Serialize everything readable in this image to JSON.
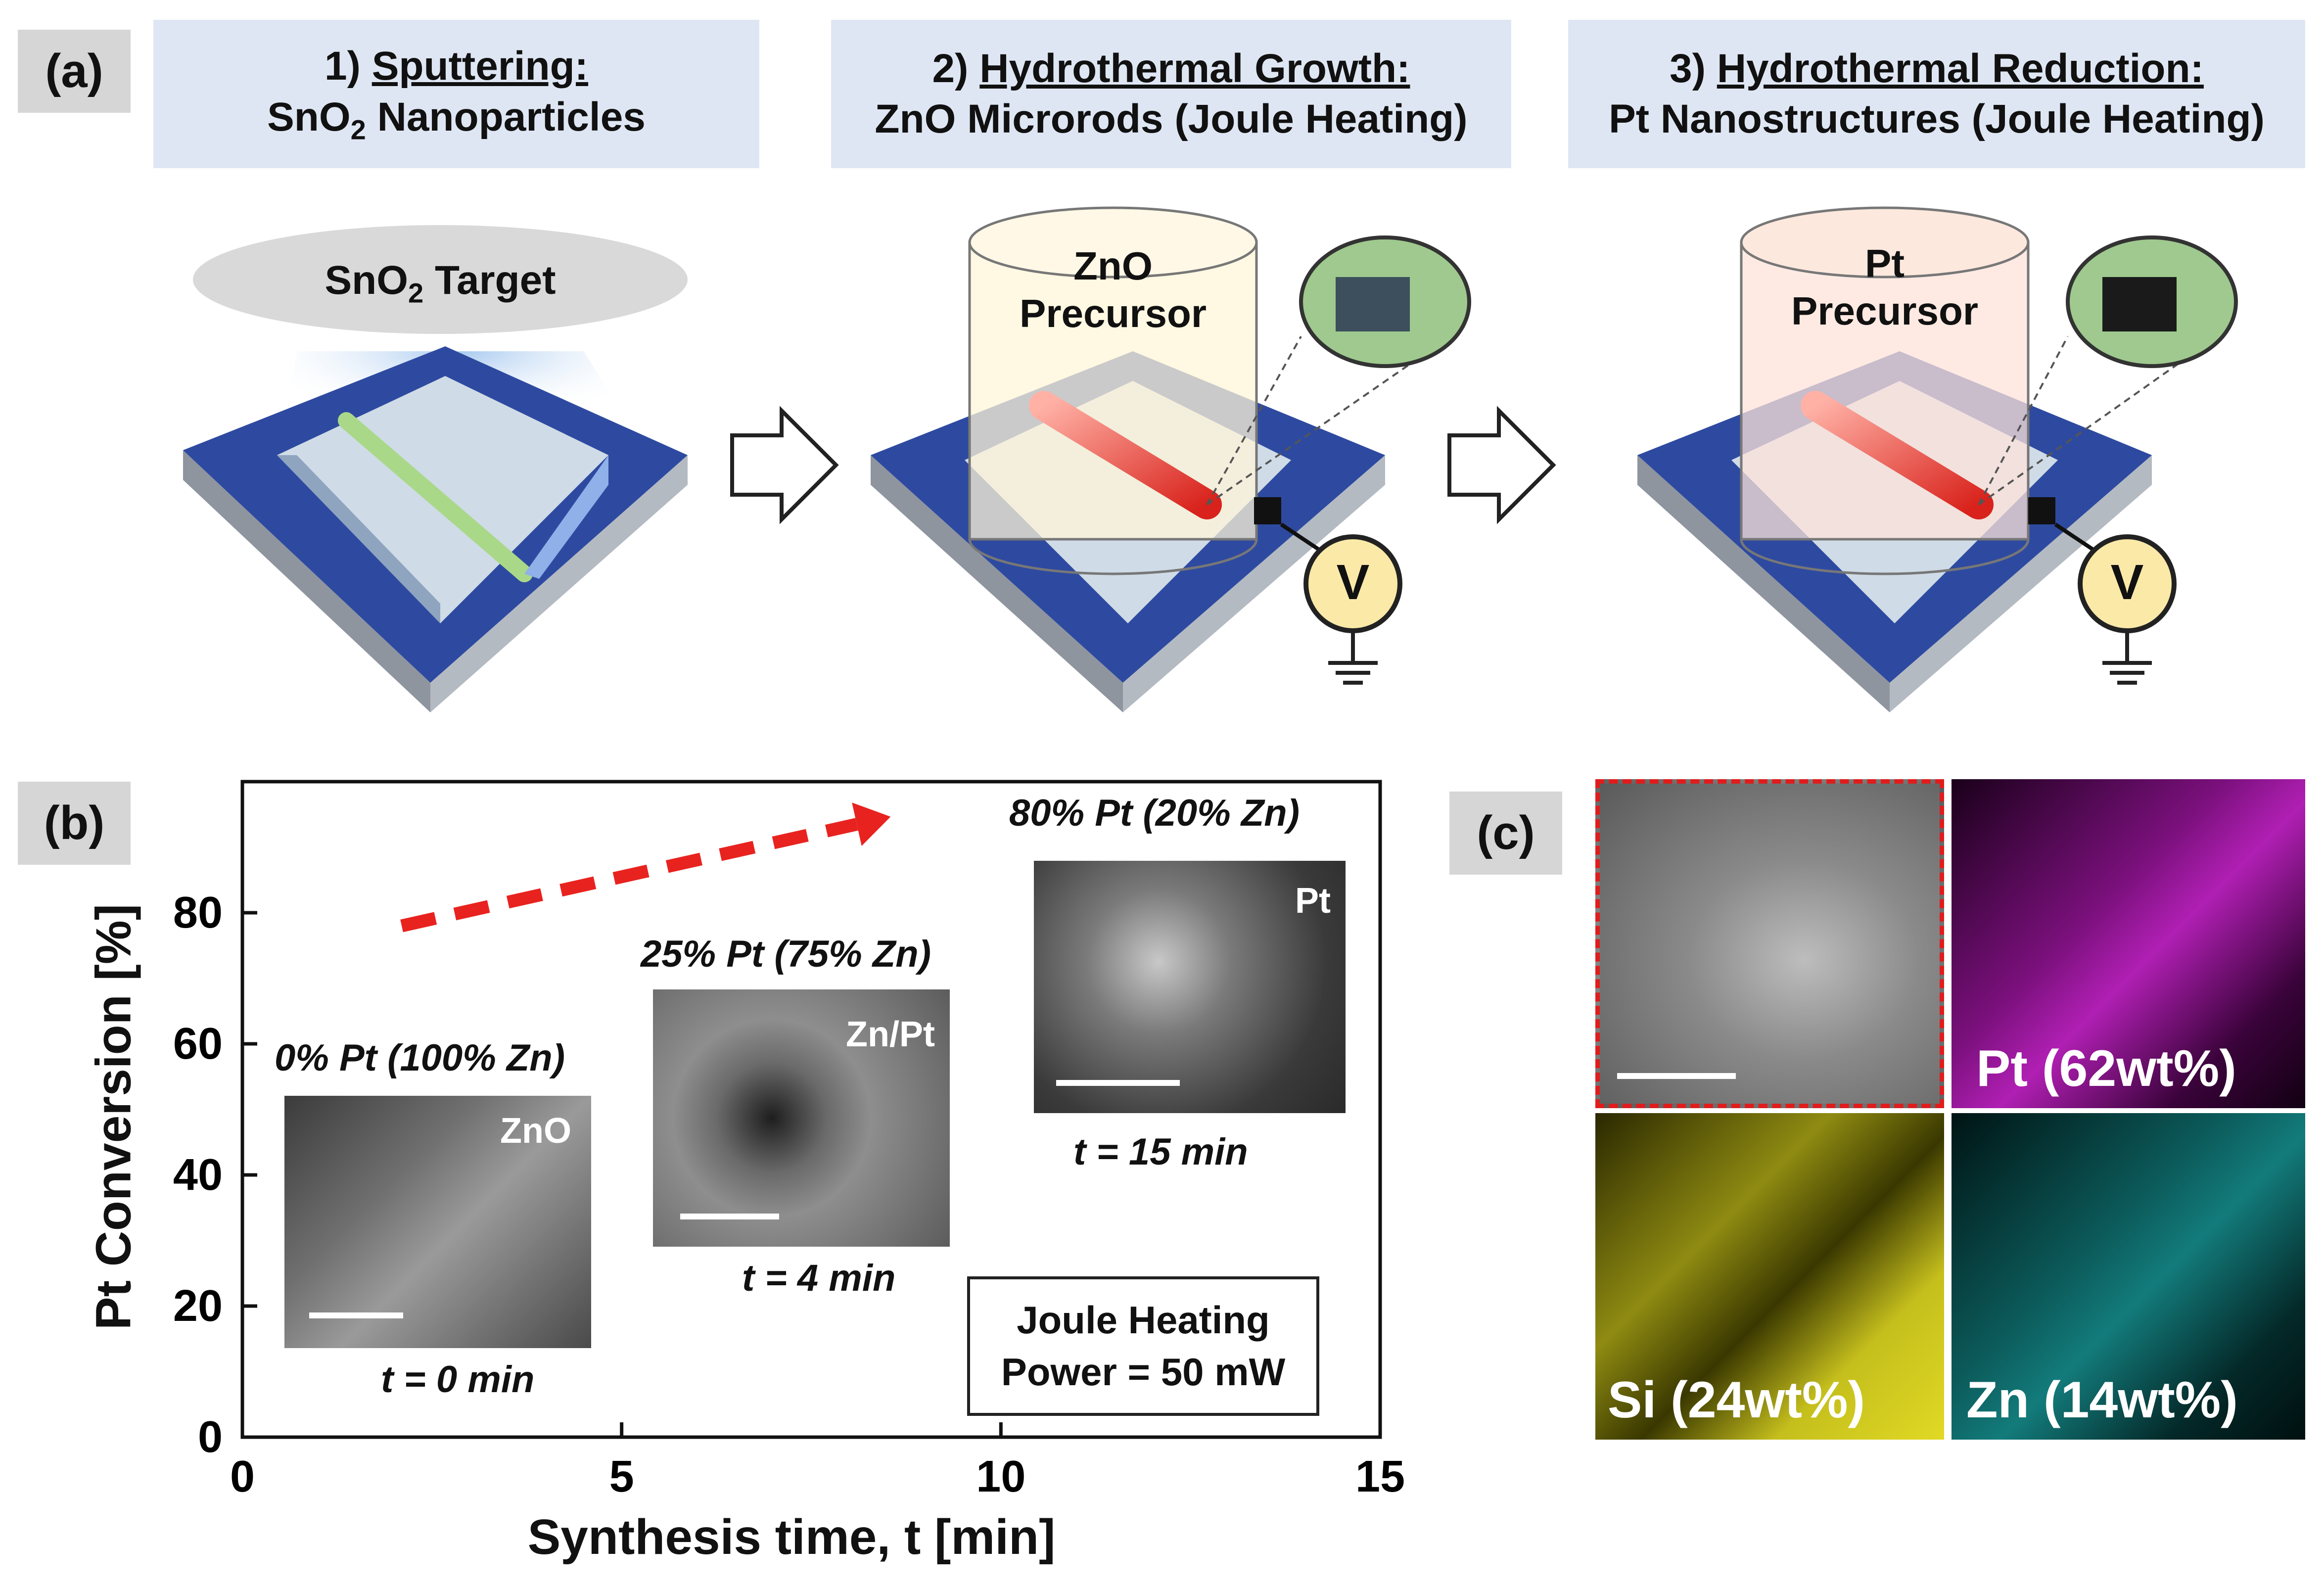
{
  "panel_a": {
    "label": "(a)",
    "steps": [
      {
        "number": "1)",
        "title": "Sputtering:",
        "subtitle_main": "SnO",
        "subtitle_sub": "2",
        "subtitle_rest": " Nanoparticles"
      },
      {
        "number": "2)",
        "title": "Hydrothermal Growth:",
        "subtitle": "ZnO Microrods (Joule Heating)"
      },
      {
        "number": "3)",
        "title": "Hydrothermal Reduction:",
        "subtitle": "Pt Nanostructures (Joule Heating)"
      }
    ],
    "target_main": "SnO",
    "target_sub": "2",
    "target_rest": " Target",
    "precursor2_line1": "ZnO",
    "precursor2_line2": "Precursor",
    "precursor3_line1": "Pt",
    "precursor3_line2": "Precursor",
    "voltmeter_label": "V"
  },
  "panel_b": {
    "label": "(b)",
    "insets": [
      {
        "caption": "0% Pt (100% Zn)",
        "label": "ZnO",
        "time": "t = 0 min"
      },
      {
        "caption": "25% Pt (75% Zn)",
        "label": "Zn/Pt",
        "time": "t = 4 min"
      },
      {
        "caption": "80% Pt (20% Zn)",
        "label": "Pt",
        "time": "t = 15 min"
      }
    ],
    "legend_line1": "Joule Heating",
    "legend_line2": "Power = 50 mW"
  },
  "chart_data": {
    "type": "scatter",
    "xlabel": "Synthesis time, t [min]",
    "ylabel": "Pt Conversion [%]",
    "xlim": [
      0,
      15
    ],
    "ylim": [
      0,
      100
    ],
    "xticks": [
      "0",
      "5",
      "10",
      "15"
    ],
    "yticks": [
      "0",
      "20",
      "40",
      "60",
      "80"
    ],
    "grid": false,
    "trend_arrow_color": "#e8231f"
  },
  "panel_c": {
    "label": "(c)",
    "maps": [
      {
        "label": "",
        "color": "#9c9c9c"
      },
      {
        "label": "Pt (62wt%)",
        "color": "#d21fd6"
      },
      {
        "label": "Si (24wt%)",
        "color": "#e6e02a"
      },
      {
        "label": "Zn (14wt%)",
        "color": "#1fc8c8"
      }
    ]
  },
  "colors": {
    "substrate_top": "#2e4aa0",
    "substrate_side": "#9aa0a8",
    "step_box": "#dfe6f3",
    "label_box": "#d6d6d6",
    "voltmeter": "#fbe9a8"
  }
}
